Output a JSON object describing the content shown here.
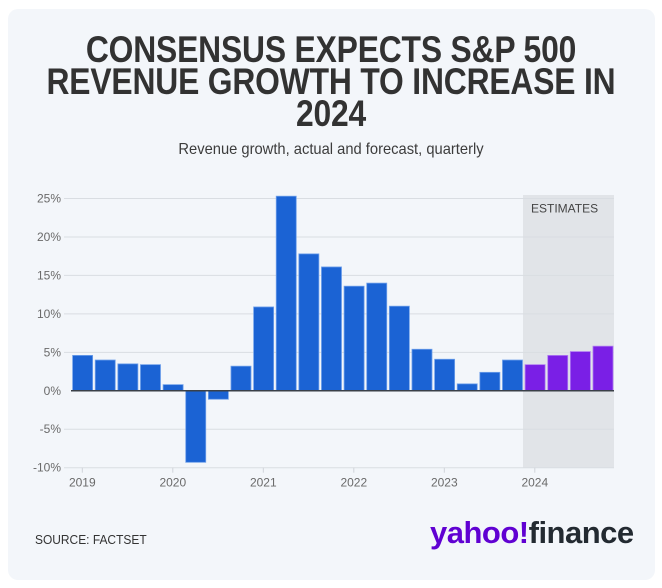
{
  "title_lines": [
    "CONSENSUS EXPECTS S&P 500",
    "REVENUE GROWTH TO INCREASE IN",
    "2024"
  ],
  "subtitle": "Revenue growth, actual and forecast, quarterly",
  "source": "SOURCE: FACTSET",
  "logo": {
    "part1": "yahoo!",
    "part2": "finance",
    "brand_color": "#6001d2",
    "text_color": "#232a31"
  },
  "colors": {
    "actual": "#1b63d4",
    "estimate": "#7a1fe6",
    "estimates_band": "#e1e4e8",
    "background": "#f3f6fa"
  },
  "chart_data": {
    "type": "bar",
    "title": "CONSENSUS EXPECTS S&P 500 REVENUE GROWTH TO INCREASE IN 2024",
    "subtitle": "Revenue growth, actual and forecast, quarterly",
    "xlabel": "",
    "ylabel": "",
    "ylim": [
      -10,
      25
    ],
    "yticks": [
      25,
      20,
      15,
      10,
      5,
      0,
      -5,
      -10
    ],
    "ytick_labels": [
      "25%",
      "20%",
      "15%",
      "10%",
      "5%",
      "0%",
      "-5%",
      "-10%"
    ],
    "xtick_labels": [
      "2019",
      "2020",
      "2021",
      "2022",
      "2023",
      "2024"
    ],
    "grid": true,
    "annotation": "ESTIMATES",
    "categories": [
      "Q1 2019",
      "Q2 2019",
      "Q3 2019",
      "Q4 2019",
      "Q1 2020",
      "Q2 2020",
      "Q3 2020",
      "Q4 2020",
      "Q1 2021",
      "Q2 2021",
      "Q3 2021",
      "Q4 2021",
      "Q1 2022",
      "Q2 2022",
      "Q3 2022",
      "Q4 2022",
      "Q1 2023",
      "Q2 2023",
      "Q3 2023",
      "Q4 2023",
      "Q1 2024",
      "Q2 2024",
      "Q3 2024",
      "Q4 2024"
    ],
    "series": [
      {
        "name": "Actual",
        "values": [
          4.6,
          4.0,
          3.5,
          3.4,
          0.8,
          -9.3,
          -1.1,
          3.2,
          10.9,
          25.3,
          17.8,
          16.1,
          13.6,
          14.0,
          11.0,
          5.4,
          4.1,
          0.9,
          2.4,
          4.0,
          null,
          null,
          null,
          null
        ]
      },
      {
        "name": "Estimate",
        "values": [
          null,
          null,
          null,
          null,
          null,
          null,
          null,
          null,
          null,
          null,
          null,
          null,
          null,
          null,
          null,
          null,
          null,
          null,
          null,
          null,
          3.4,
          4.6,
          5.1,
          5.8
        ]
      }
    ]
  }
}
